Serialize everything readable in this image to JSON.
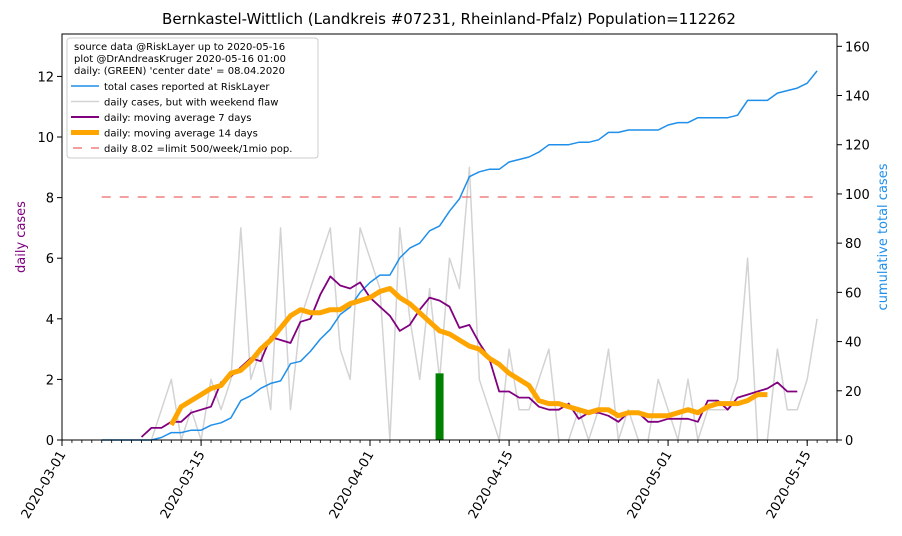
{
  "chart_data": {
    "type": "line",
    "title": "Bernkastel-Wittlich (Landkreis #07231, Rheinland-Pfalz) Population=112262",
    "ylabel_left": "daily cases",
    "ylabel_right": "cumulative total cases",
    "ylim_left": [
      0,
      13.4
    ],
    "ylim_right": [
      0,
      165
    ],
    "xlim": [
      0,
      78
    ],
    "x_start_date": "2020-03-01",
    "x_ticks": [
      {
        "day": 0,
        "label": "2020-03-01"
      },
      {
        "day": 14,
        "label": "2020-03-15"
      },
      {
        "day": 31,
        "label": "2020-04-01"
      },
      {
        "day": 45,
        "label": "2020-04-15"
      },
      {
        "day": 61,
        "label": "2020-05-01"
      },
      {
        "day": 75,
        "label": "2020-05-15"
      }
    ],
    "y_ticks_left": [
      "0",
      "2",
      "4",
      "6",
      "8",
      "10",
      "12"
    ],
    "y_ticks_right": [
      "0",
      "20",
      "40",
      "60",
      "80",
      "100",
      "120",
      "140",
      "160"
    ],
    "legend_position": "top-left",
    "legend_header": [
      "source data @RiskLayer up to 2020-05-16",
      "plot @DrAndreasKruger 2020-05-16 01:00",
      "daily: (GREEN) 'center date' = 08.04.2020"
    ],
    "series": [
      {
        "name": "total cases reported at RiskLayer",
        "axis": "right",
        "color": "#1f8fea",
        "x": [
          4,
          5,
          6,
          7,
          8,
          9,
          10,
          11,
          12,
          13,
          14,
          15,
          16,
          17,
          18,
          19,
          20,
          21,
          22,
          23,
          24,
          25,
          26,
          27,
          28,
          29,
          30,
          31,
          32,
          33,
          34,
          35,
          36,
          37,
          38,
          39,
          40,
          41,
          42,
          43,
          44,
          45,
          46,
          47,
          48,
          49,
          50,
          51,
          52,
          53,
          54,
          55,
          56,
          57,
          58,
          59,
          60,
          61,
          62,
          63,
          64,
          65,
          66,
          67,
          68,
          69,
          70,
          71,
          72,
          73,
          74,
          75,
          76
        ],
        "y": [
          0,
          0,
          0,
          0,
          0,
          0,
          1,
          3,
          3,
          4,
          4,
          6,
          7,
          9,
          16,
          18,
          21,
          23,
          24,
          31,
          32,
          36,
          41,
          45,
          51,
          54,
          60,
          64,
          67,
          67,
          74,
          78,
          80,
          85,
          87,
          93,
          98,
          107,
          109,
          110,
          110,
          113,
          114,
          115,
          117,
          120,
          120,
          120,
          121,
          121,
          122,
          125,
          125,
          126,
          126,
          126,
          126,
          128,
          129,
          129,
          131,
          131,
          131,
          131,
          132,
          138,
          138,
          138,
          141,
          142,
          143,
          145,
          150
        ]
      },
      {
        "name": "daily cases, but with weekend flaw",
        "axis": "left",
        "color": "#d3d3d3",
        "x": [
          4,
          5,
          6,
          7,
          8,
          9,
          10,
          11,
          12,
          13,
          14,
          15,
          16,
          17,
          18,
          19,
          20,
          21,
          22,
          23,
          24,
          25,
          26,
          27,
          28,
          29,
          30,
          31,
          32,
          33,
          34,
          35,
          36,
          37,
          38,
          39,
          40,
          41,
          42,
          43,
          44,
          45,
          46,
          47,
          48,
          49,
          50,
          51,
          52,
          53,
          54,
          55,
          56,
          57,
          58,
          59,
          60,
          61,
          62,
          63,
          64,
          65,
          66,
          67,
          68,
          69,
          70,
          71,
          72,
          73,
          74,
          75,
          76
        ],
        "y": [
          0,
          0,
          0,
          0,
          0,
          0,
          1,
          2,
          0,
          1,
          0,
          2,
          1,
          2,
          7,
          2,
          3,
          1,
          7,
          1,
          4,
          5,
          6,
          7,
          3,
          2,
          7,
          6,
          5,
          0,
          7,
          4,
          2,
          5,
          2,
          6,
          5,
          9,
          2,
          1,
          0,
          3,
          1,
          1,
          2,
          3,
          0,
          0,
          1,
          0,
          1,
          3,
          0,
          1,
          0,
          0,
          2,
          1,
          0,
          2,
          0,
          1,
          1,
          1,
          2,
          6,
          0,
          0,
          3,
          1,
          1,
          2,
          4
        ]
      },
      {
        "name": "daily: moving average 7 days",
        "axis": "left",
        "color": "#800080",
        "x": [
          8,
          9,
          10,
          11,
          12,
          13,
          14,
          15,
          16,
          17,
          18,
          19,
          20,
          21,
          22,
          23,
          24,
          25,
          26,
          27,
          28,
          29,
          30,
          31,
          32,
          33,
          34,
          35,
          36,
          37,
          38,
          39,
          40,
          41,
          42,
          43,
          44,
          45,
          46,
          47,
          48,
          49,
          50,
          51,
          52,
          53,
          54,
          55,
          56,
          57,
          58,
          59,
          60,
          61,
          62,
          63,
          64,
          65,
          66,
          67,
          68,
          69,
          70,
          71,
          72,
          73,
          74
        ],
        "y": [
          0.1,
          0.4,
          0.4,
          0.6,
          0.6,
          0.9,
          1.0,
          1.1,
          1.9,
          2.1,
          2.4,
          2.7,
          2.6,
          3.4,
          3.3,
          3.2,
          3.9,
          4.0,
          4.8,
          5.4,
          5.1,
          5.0,
          5.2,
          4.7,
          4.4,
          4.1,
          3.6,
          3.8,
          4.3,
          4.7,
          4.6,
          4.4,
          3.7,
          3.8,
          3.2,
          2.7,
          1.6,
          1.6,
          1.4,
          1.4,
          1.1,
          1.0,
          1.0,
          1.2,
          0.7,
          0.9,
          0.9,
          0.8,
          0.6,
          0.9,
          0.9,
          0.6,
          0.6,
          0.7,
          0.7,
          0.7,
          0.6,
          1.3,
          1.3,
          1.0,
          1.4,
          1.5,
          1.6,
          1.7,
          1.9,
          1.6,
          1.6
        ]
      },
      {
        "name": "daily: moving average 14 days",
        "axis": "left",
        "color": "#ffa500",
        "x": [
          11,
          12,
          13,
          14,
          15,
          16,
          17,
          18,
          19,
          20,
          21,
          22,
          23,
          24,
          25,
          26,
          27,
          28,
          29,
          30,
          31,
          32,
          33,
          34,
          35,
          36,
          37,
          38,
          39,
          40,
          41,
          42,
          43,
          44,
          45,
          46,
          47,
          48,
          49,
          50,
          51,
          52,
          53,
          54,
          55,
          56,
          57,
          58,
          59,
          60,
          61,
          62,
          63,
          64,
          65,
          66,
          67,
          68,
          69,
          70,
          71
        ],
        "y": [
          0.5,
          1.1,
          1.3,
          1.5,
          1.7,
          1.8,
          2.2,
          2.3,
          2.6,
          3.0,
          3.3,
          3.7,
          4.1,
          4.3,
          4.2,
          4.2,
          4.3,
          4.3,
          4.5,
          4.6,
          4.7,
          4.9,
          5.0,
          4.7,
          4.5,
          4.2,
          3.9,
          3.6,
          3.5,
          3.3,
          3.1,
          3.0,
          2.7,
          2.5,
          2.2,
          2.0,
          1.8,
          1.3,
          1.2,
          1.2,
          1.1,
          1.0,
          0.9,
          1.0,
          1.0,
          0.8,
          0.9,
          0.9,
          0.8,
          0.8,
          0.8,
          0.9,
          1.0,
          0.9,
          1.1,
          1.2,
          1.2,
          1.2,
          1.3,
          1.5,
          1.5
        ]
      },
      {
        "name": "daily 8.02 =limit 500/week/1mio pop.",
        "axis": "left",
        "color": "#f08080",
        "dashed": true,
        "x": [
          4,
          76
        ],
        "y": [
          8.02,
          8.02
        ]
      }
    ],
    "center_bar": {
      "day": 38,
      "value": 2.2,
      "color": "#008000"
    }
  }
}
